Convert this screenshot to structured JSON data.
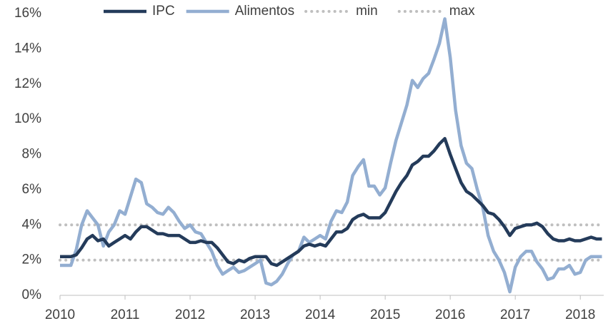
{
  "chart_data": {
    "type": "line",
    "x": [
      2010,
      2010.083,
      2010.167,
      2010.25,
      2010.333,
      2010.417,
      2010.5,
      2010.583,
      2010.667,
      2010.75,
      2010.833,
      2010.917,
      2011,
      2011.083,
      2011.167,
      2011.25,
      2011.333,
      2011.417,
      2011.5,
      2011.583,
      2011.667,
      2011.75,
      2011.833,
      2011.917,
      2012,
      2012.083,
      2012.167,
      2012.25,
      2012.333,
      2012.417,
      2012.5,
      2012.583,
      2012.667,
      2012.75,
      2012.833,
      2012.917,
      2013,
      2013.083,
      2013.167,
      2013.25,
      2013.333,
      2013.417,
      2013.5,
      2013.583,
      2013.667,
      2013.75,
      2013.833,
      2013.917,
      2014,
      2014.083,
      2014.167,
      2014.25,
      2014.333,
      2014.417,
      2014.5,
      2014.583,
      2014.667,
      2014.75,
      2014.833,
      2014.917,
      2015,
      2015.083,
      2015.167,
      2015.25,
      2015.333,
      2015.417,
      2015.5,
      2015.583,
      2015.667,
      2015.75,
      2015.833,
      2015.917,
      2016,
      2016.083,
      2016.167,
      2016.25,
      2016.333,
      2016.417,
      2016.5,
      2016.583,
      2016.667,
      2016.75,
      2016.833,
      2016.917,
      2017,
      2017.083,
      2017.167,
      2017.25,
      2017.333,
      2017.417,
      2017.5,
      2017.583,
      2017.667,
      2017.75,
      2017.833,
      2017.917,
      2018,
      2018.083,
      2018.167,
      2018.25,
      2018.333
    ],
    "series": [
      {
        "name": "IPC",
        "color": "#243b5a",
        "values": [
          2.2,
          2.2,
          2.2,
          2.3,
          2.7,
          3.2,
          3.4,
          3.1,
          3.2,
          2.8,
          3.0,
          3.2,
          3.4,
          3.2,
          3.6,
          3.9,
          3.9,
          3.7,
          3.5,
          3.5,
          3.4,
          3.4,
          3.4,
          3.2,
          3.0,
          3.0,
          3.1,
          3.0,
          3.0,
          2.7,
          2.3,
          1.9,
          1.8,
          2.0,
          1.9,
          2.1,
          2.2,
          2.2,
          2.2,
          1.8,
          1.7,
          1.9,
          2.1,
          2.3,
          2.5,
          2.8,
          2.9,
          2.8,
          2.9,
          2.8,
          3.2,
          3.6,
          3.6,
          3.8,
          4.3,
          4.5,
          4.6,
          4.4,
          4.4,
          4.4,
          4.7,
          5.3,
          5.9,
          6.4,
          6.8,
          7.4,
          7.6,
          7.9,
          7.9,
          8.2,
          8.6,
          8.9,
          8.0,
          7.2,
          6.4,
          5.9,
          5.7,
          5.4,
          5.1,
          4.7,
          4.6,
          4.3,
          3.9,
          3.4,
          3.8,
          3.9,
          4.0,
          4.0,
          4.1,
          3.9,
          3.5,
          3.2,
          3.1,
          3.1,
          3.2,
          3.1,
          3.1,
          3.2,
          3.3,
          3.2,
          3.2
        ]
      },
      {
        "name": "Alimentos",
        "color": "#93aed1",
        "values": [
          1.7,
          1.7,
          1.7,
          2.6,
          4.0,
          4.8,
          4.4,
          4.0,
          2.8,
          3.6,
          4.0,
          4.8,
          4.6,
          5.6,
          6.6,
          6.4,
          5.2,
          5.0,
          4.7,
          4.6,
          5.0,
          4.7,
          4.2,
          3.8,
          4.0,
          3.6,
          3.5,
          3.0,
          2.5,
          1.7,
          1.2,
          1.4,
          1.6,
          1.3,
          1.4,
          1.6,
          1.8,
          2.0,
          0.7,
          0.6,
          0.8,
          1.2,
          1.8,
          2.3,
          2.5,
          3.3,
          3.0,
          3.2,
          3.4,
          3.2,
          4.2,
          4.8,
          4.7,
          5.3,
          6.8,
          7.3,
          7.7,
          6.2,
          6.2,
          5.7,
          6.1,
          7.5,
          8.8,
          9.8,
          10.8,
          12.2,
          11.8,
          12.3,
          12.6,
          13.4,
          14.3,
          15.7,
          13.5,
          10.5,
          8.5,
          7.5,
          7.2,
          6.0,
          5.0,
          3.4,
          2.5,
          2.0,
          1.3,
          0.2,
          1.6,
          2.2,
          2.5,
          2.5,
          1.9,
          1.5,
          0.9,
          1.0,
          1.5,
          1.5,
          1.7,
          1.2,
          1.3,
          2.0,
          2.2,
          2.2,
          2.2
        ]
      }
    ],
    "reference_lines": [
      {
        "name": "min",
        "value": 2,
        "color": "#bfbfbf"
      },
      {
        "name": "max",
        "value": 4,
        "color": "#bfbfbf"
      }
    ],
    "xlim": [
      2010,
      2018.36
    ],
    "xticks": [
      2010,
      2011,
      2012,
      2013,
      2014,
      2015,
      2016,
      2017,
      2018
    ],
    "ylim": [
      0,
      16
    ],
    "yticks": [
      {
        "value": 0,
        "label": "0%"
      },
      {
        "value": 2,
        "label": "2%"
      },
      {
        "value": 4,
        "label": "4%"
      },
      {
        "value": 6,
        "label": "6%"
      },
      {
        "value": 8,
        "label": "8%"
      },
      {
        "value": 10,
        "label": "10%"
      },
      {
        "value": 12,
        "label": "12%"
      },
      {
        "value": 14,
        "label": "14%"
      },
      {
        "value": 16,
        "label": "16%"
      }
    ],
    "legend": "top"
  }
}
